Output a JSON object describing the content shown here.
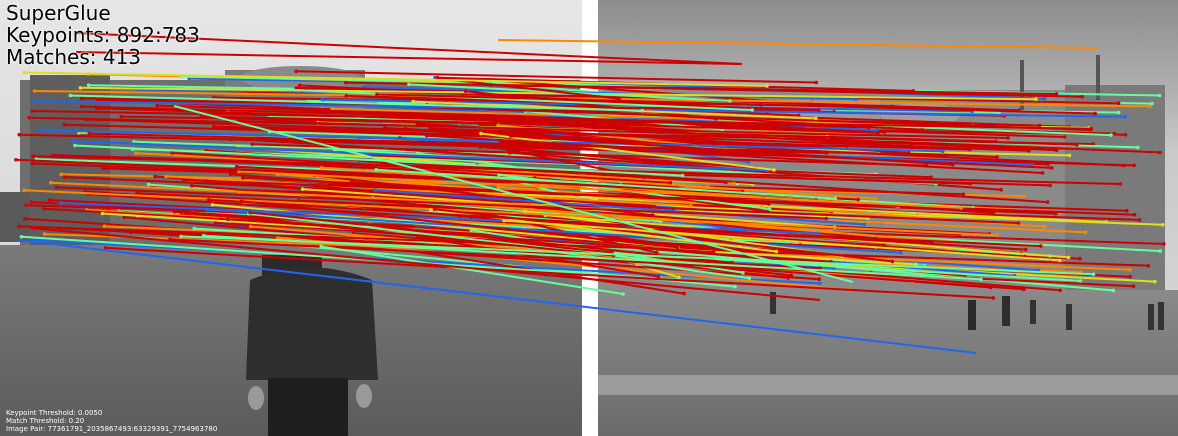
{
  "header": {
    "title": "SuperGlue",
    "keypoints_label": "Keypoints: 892:783",
    "matches_label": "Matches: 413"
  },
  "footer": {
    "keypoint_threshold": "Keypoint Threshold: 0.0050",
    "match_threshold": "Match Threshold: 0.20",
    "image_pair": "Image Pair: 77361791_2035867493:63329391_7754963780"
  },
  "colors": {
    "high_confidence": "#cc0000",
    "mid_confidence": "#ff8800",
    "low_confidence_yellow": "#dddd22",
    "low_confidence_green": "#66ff99",
    "low_confidence_blue": "#2266ee",
    "separator": "#ffffff"
  }
}
